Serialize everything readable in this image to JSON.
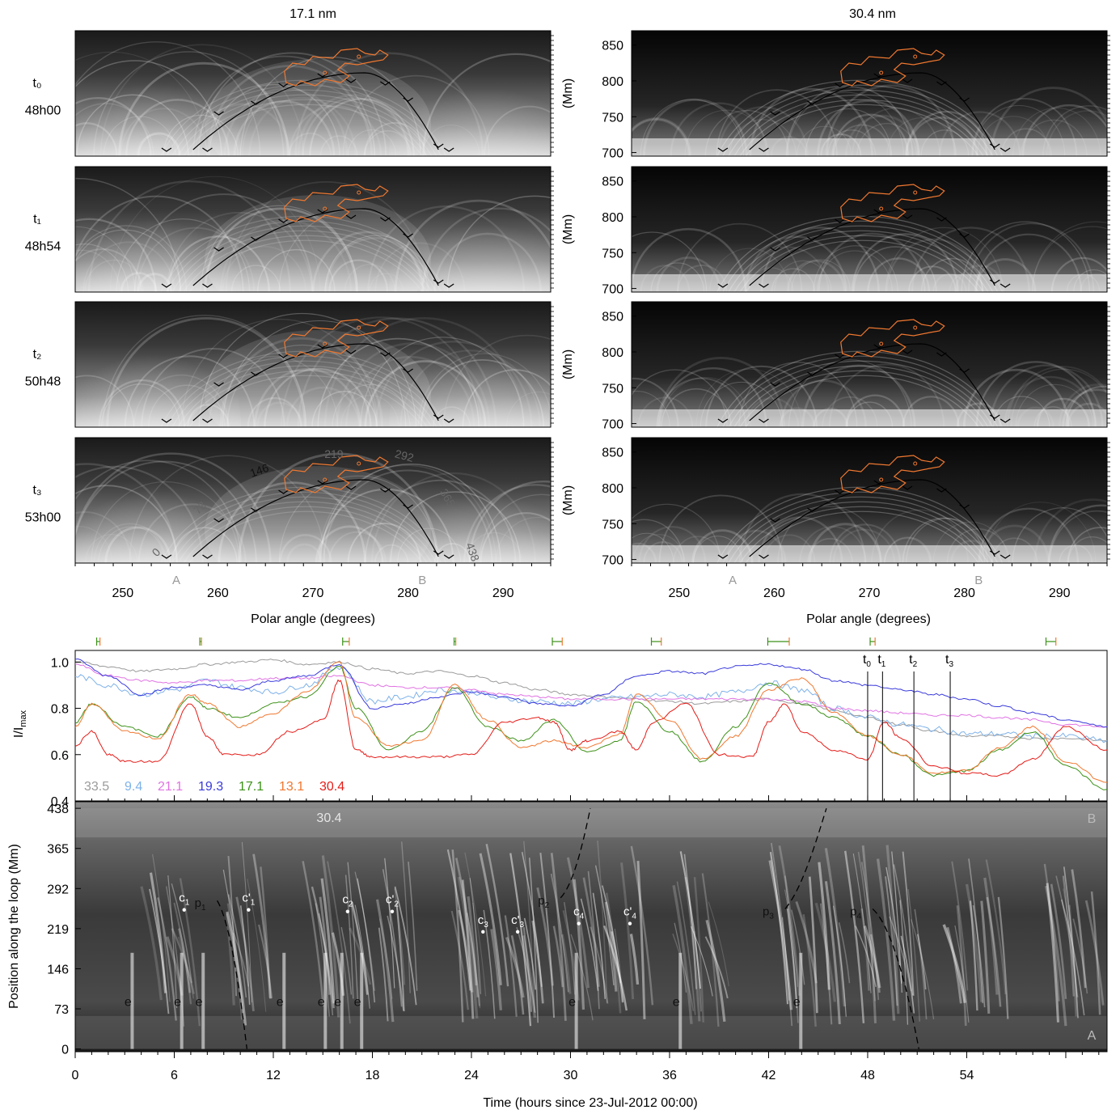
{
  "chart_data": [
    {
      "type": "heatmap",
      "panel": "17.1 nm",
      "title": "17.1 nm",
      "xlabel": "Polar angle (degrees)",
      "xlim": [
        245,
        295
      ],
      "x_ticks": [
        250,
        260,
        270,
        280,
        290
      ],
      "footpoint_labels": {
        "A": 257.5,
        "B": 281.5
      },
      "rows": [
        {
          "label": "t₀",
          "time": "48h00"
        },
        {
          "label": "t₁",
          "time": "48h54"
        },
        {
          "label": "t₂",
          "time": "50h48"
        },
        {
          "label": "t₃",
          "time": "53h00"
        }
      ],
      "loop_position_labels": [
        "0",
        "73",
        "146",
        "219",
        "292",
        "365",
        "438"
      ]
    },
    {
      "type": "heatmap",
      "panel": "30.4 nm",
      "title": "30.4 nm",
      "xlabel": "Polar angle (degrees)",
      "ylabel": "(Mm)",
      "xlim": [
        245,
        295
      ],
      "ylim": [
        695,
        870
      ],
      "x_ticks": [
        250,
        260,
        270,
        280,
        290
      ],
      "y_ticks": [
        700,
        750,
        800,
        850
      ],
      "footpoint_labels": {
        "A": 257.5,
        "B": 281.5
      }
    },
    {
      "type": "line",
      "ylabel": "I/I",
      "ylabel_sub": "max",
      "xlim": [
        0,
        62.5
      ],
      "ylim": [
        0.4,
        1.05
      ],
      "y_ticks": [
        0.4,
        0.6,
        0.8,
        1.0
      ],
      "y_tick_labels": [
        "0.4",
        "0.6",
        "0.8",
        "1.0"
      ],
      "series": [
        {
          "name": "33.5",
          "color": "#9a9a9a",
          "x": [
            0,
            2,
            4,
            6,
            8,
            10,
            12,
            14,
            16,
            18,
            20,
            22,
            24,
            26,
            28,
            30,
            32,
            34,
            36,
            38,
            40,
            42,
            44,
            46,
            48,
            50,
            52,
            54,
            56,
            58,
            60,
            62.5
          ],
          "y": [
            1.0,
            0.98,
            0.96,
            0.97,
            0.99,
            1.0,
            1.01,
            0.99,
            1.0,
            0.97,
            0.95,
            0.96,
            0.94,
            0.91,
            0.88,
            0.86,
            0.85,
            0.84,
            0.83,
            0.82,
            0.83,
            0.84,
            0.82,
            0.79,
            0.76,
            0.73,
            0.7,
            0.68,
            0.68,
            0.67,
            0.67,
            0.66
          ]
        },
        {
          "name": "9.4",
          "color": "#7fb2e8",
          "x": [
            0,
            2,
            4,
            6,
            8,
            10,
            12,
            14,
            16,
            18,
            20,
            22,
            24,
            26,
            28,
            30,
            32,
            34,
            36,
            38,
            40,
            42,
            44,
            46,
            48,
            50,
            52,
            54,
            56,
            58,
            60,
            62.5
          ],
          "y": [
            0.94,
            0.9,
            0.86,
            0.88,
            0.92,
            0.89,
            0.87,
            0.9,
            0.98,
            0.83,
            0.85,
            0.88,
            0.87,
            0.84,
            0.83,
            0.82,
            0.84,
            0.85,
            0.86,
            0.85,
            0.87,
            0.91,
            0.88,
            0.8,
            0.76,
            0.73,
            0.71,
            0.69,
            0.69,
            0.68,
            0.68,
            0.66
          ]
        },
        {
          "name": "21.1",
          "color": "#e073e3",
          "x": [
            0,
            2,
            4,
            6,
            8,
            10,
            12,
            14,
            16,
            18,
            20,
            22,
            24,
            26,
            28,
            30,
            32,
            34,
            36,
            38,
            40,
            42,
            44,
            46,
            48,
            50,
            52,
            54,
            56,
            58,
            60,
            62.5
          ],
          "y": [
            0.99,
            0.94,
            0.92,
            0.91,
            0.92,
            0.92,
            0.93,
            0.93,
            0.94,
            0.9,
            0.89,
            0.89,
            0.88,
            0.86,
            0.85,
            0.84,
            0.84,
            0.84,
            0.84,
            0.84,
            0.84,
            0.84,
            0.83,
            0.8,
            0.79,
            0.78,
            0.77,
            0.77,
            0.76,
            0.75,
            0.73,
            0.72
          ]
        },
        {
          "name": "19.3",
          "color": "#3b3bdc",
          "x": [
            0,
            2,
            4,
            6,
            8,
            10,
            12,
            14,
            16,
            18,
            20,
            22,
            24,
            26,
            28,
            30,
            32,
            34,
            36,
            38,
            40,
            42,
            44,
            46,
            48,
            50,
            52,
            54,
            56,
            58,
            60,
            62.5
          ],
          "y": [
            1.01,
            0.94,
            0.86,
            0.89,
            0.9,
            0.88,
            0.92,
            0.94,
            0.99,
            0.8,
            0.82,
            0.85,
            0.87,
            0.85,
            0.82,
            0.81,
            0.86,
            0.94,
            0.96,
            0.95,
            0.98,
            0.99,
            0.97,
            0.92,
            0.9,
            0.88,
            0.86,
            0.84,
            0.81,
            0.78,
            0.75,
            0.72
          ]
        },
        {
          "name": "17.1",
          "color": "#3c9118",
          "x": [
            0,
            1,
            3,
            5,
            7,
            8,
            10,
            12,
            14,
            16,
            17,
            19,
            21,
            23,
            25,
            27,
            29,
            31,
            33,
            34,
            36,
            38,
            40,
            42,
            44,
            46,
            48,
            50,
            52,
            54,
            56,
            58,
            60,
            62.5
          ],
          "y": [
            0.74,
            0.82,
            0.72,
            0.68,
            0.85,
            0.8,
            0.76,
            0.82,
            0.85,
            0.98,
            0.8,
            0.62,
            0.7,
            0.89,
            0.72,
            0.66,
            0.75,
            0.61,
            0.66,
            0.83,
            0.7,
            0.57,
            0.72,
            0.91,
            0.82,
            0.76,
            0.68,
            0.6,
            0.51,
            0.53,
            0.62,
            0.7,
            0.55,
            0.45
          ]
        },
        {
          "name": "13.1",
          "color": "#f07830",
          "x": [
            0,
            1,
            3,
            5,
            7,
            8,
            10,
            12,
            14,
            16,
            17,
            19,
            21,
            23,
            25,
            27,
            29,
            31,
            33,
            34,
            36,
            38,
            40,
            42,
            44,
            46,
            48,
            50,
            52,
            54,
            56,
            58,
            60,
            62.5
          ],
          "y": [
            0.72,
            0.82,
            0.7,
            0.67,
            0.86,
            0.82,
            0.72,
            0.78,
            0.87,
            1.0,
            0.76,
            0.64,
            0.66,
            0.9,
            0.75,
            0.63,
            0.66,
            0.63,
            0.69,
            0.86,
            0.75,
            0.58,
            0.68,
            0.88,
            0.93,
            0.78,
            0.68,
            0.6,
            0.52,
            0.53,
            0.63,
            0.72,
            0.57,
            0.48
          ]
        },
        {
          "name": "30.4",
          "color": "#e41b17",
          "x": [
            0,
            1,
            2,
            3,
            5,
            7,
            8,
            9,
            11,
            13,
            15,
            16,
            17,
            18,
            20,
            22,
            24,
            26,
            28,
            29,
            30,
            31,
            33,
            34,
            35,
            37,
            39,
            41,
            42,
            43,
            44,
            46,
            48,
            49,
            50,
            52,
            54,
            56,
            58,
            60,
            62.5
          ],
          "y": [
            0.64,
            0.7,
            0.6,
            0.57,
            0.57,
            0.82,
            0.68,
            0.6,
            0.6,
            0.7,
            0.75,
            0.92,
            0.62,
            0.59,
            0.59,
            0.59,
            0.6,
            0.74,
            0.76,
            0.74,
            0.62,
            0.66,
            0.7,
            0.62,
            0.74,
            0.82,
            0.6,
            0.59,
            0.74,
            0.82,
            0.7,
            0.62,
            0.58,
            0.74,
            0.67,
            0.55,
            0.52,
            0.51,
            0.58,
            0.72,
            0.62
          ]
        }
      ],
      "time_markers": [
        {
          "label": "t",
          "sub": "0",
          "x": 48.0
        },
        {
          "label": "t",
          "sub": "1",
          "x": 48.9
        },
        {
          "label": "t",
          "sub": "2",
          "x": 50.8
        },
        {
          "label": "t",
          "sub": "3",
          "x": 53.0
        }
      ],
      "interval_bars": [
        1.4,
        7.6,
        16.4,
        23.0,
        29.2,
        35.2,
        42.6,
        48.3,
        59.1
      ]
    },
    {
      "type": "heatmap",
      "title": "30.4",
      "xlabel": "Time (hours since 23-Jul-2012 00:00)",
      "ylabel": "Position along the loop (Mm)",
      "xlim": [
        0,
        62.5
      ],
      "ylim": [
        -5,
        450
      ],
      "x_ticks": [
        0,
        6,
        12,
        18,
        24,
        30,
        36,
        42,
        48,
        54
      ],
      "y_ticks": [
        0,
        73,
        146,
        219,
        292,
        365,
        438
      ],
      "end_labels": {
        "top": "B",
        "bottom": "A"
      },
      "events": [
        {
          "label": "e",
          "x": 3.2,
          "y": 75
        },
        {
          "label": "e",
          "x": 6.2,
          "y": 75
        },
        {
          "label": "e",
          "x": 7.5,
          "y": 75
        },
        {
          "label": "e",
          "x": 12.4,
          "y": 75
        },
        {
          "label": "e",
          "x": 14.9,
          "y": 75
        },
        {
          "label": "e",
          "x": 15.9,
          "y": 75
        },
        {
          "label": "e",
          "x": 17.1,
          "y": 75
        },
        {
          "label": "e",
          "x": 30.1,
          "y": 75
        },
        {
          "label": "e",
          "x": 36.4,
          "y": 75
        },
        {
          "label": "e",
          "x": 43.7,
          "y": 75
        }
      ],
      "condensations": [
        {
          "label": "c",
          "sub": "1",
          "prime": false,
          "x": 6.6,
          "y": 265
        },
        {
          "label": "c",
          "sub": "1",
          "prime": true,
          "x": 10.5,
          "y": 265
        },
        {
          "label": "c",
          "sub": "2",
          "prime": false,
          "x": 16.5,
          "y": 262
        },
        {
          "label": "c",
          "sub": "2",
          "prime": true,
          "x": 19.2,
          "y": 262
        },
        {
          "label": "c",
          "sub": "3",
          "prime": false,
          "x": 24.7,
          "y": 225
        },
        {
          "label": "c",
          "sub": "3",
          "prime": true,
          "x": 26.8,
          "y": 225
        },
        {
          "label": "c",
          "sub": "4",
          "prime": false,
          "x": 30.5,
          "y": 240
        },
        {
          "label": "c",
          "sub": "4",
          "prime": true,
          "x": 33.6,
          "y": 240
        }
      ],
      "paths": [
        {
          "label": "p",
          "sub": "1",
          "x": [
            8.6,
            9.4,
            10.0,
            10.4
          ],
          "y": [
            270,
            230,
            100,
            0
          ]
        },
        {
          "label": "p",
          "sub": "2",
          "x": [
            29.4,
            30.2,
            30.8,
            31.2
          ],
          "y": [
            275,
            300,
            380,
            438
          ]
        },
        {
          "label": "p",
          "sub": "3",
          "x": [
            43.0,
            44.0,
            44.8,
            45.5
          ],
          "y": [
            255,
            290,
            370,
            438
          ]
        },
        {
          "label": "p",
          "sub": "4",
          "x": [
            48.3,
            49.6,
            50.6,
            51.1
          ],
          "y": [
            255,
            220,
            80,
            0
          ]
        }
      ]
    }
  ]
}
